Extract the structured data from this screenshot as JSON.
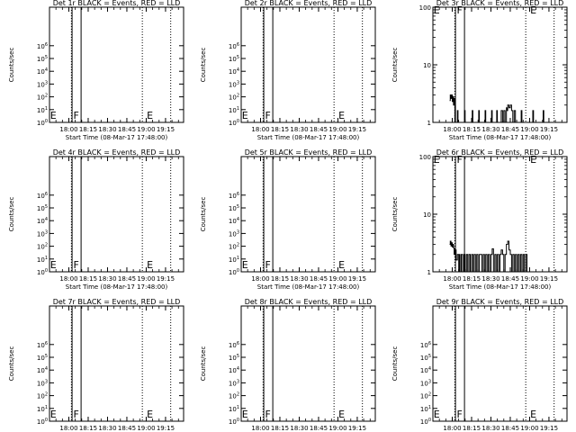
{
  "figure": {
    "x_ticks": [
      "18:00",
      "18:15",
      "18:30",
      "18:45",
      "19:00",
      "19:15"
    ],
    "x_tick_minutes": [
      0,
      15,
      30,
      45,
      60,
      75
    ],
    "x_label": "Start Time (08-Mar-17 17:48:00)",
    "y_label": "Counts/sec",
    "x_range_minutes": [
      -15,
      89
    ],
    "colors": {
      "axes": "#000000",
      "background": "#ffffff",
      "events": "#000000"
    }
  },
  "chart_data": [
    {
      "type": "line",
      "title": "Det 1r BLACK = Events, RED = LLD",
      "xlabel": "Start Time (08-Mar-17 17:48:00)",
      "ylabel": "Counts/sec",
      "yscale": "log",
      "ylim": [
        1,
        100000000
      ],
      "yticks": [
        "10^0",
        "10^1",
        "10^2",
        "10^3",
        "10^4",
        "10^5",
        "10^6"
      ],
      "markers": [
        {
          "text": "E",
          "minute": -14.5
        },
        {
          "text": "F",
          "minute": 3.5
        },
        {
          "text": "E",
          "minute": 60.5
        }
      ],
      "vlines_solid": [
        2.5,
        9.5
      ],
      "vlines_dotted": [
        2,
        57,
        79
      ],
      "series": []
    },
    {
      "type": "line",
      "title": "Det 2r BLACK = Events, RED = LLD",
      "xlabel": "Start Time (08-Mar-17 17:48:00)",
      "ylabel": "Counts/sec",
      "yscale": "log",
      "ylim": [
        1,
        100000000
      ],
      "yticks": [
        "10^0",
        "10^1",
        "10^2",
        "10^3",
        "10^4",
        "10^5",
        "10^6"
      ],
      "markers": [
        {
          "text": "E",
          "minute": -14.5
        },
        {
          "text": "F",
          "minute": 3.5
        },
        {
          "text": "E",
          "minute": 60.5
        }
      ],
      "vlines_solid": [
        2.5,
        9.5
      ],
      "vlines_dotted": [
        2,
        57,
        79
      ],
      "series": []
    },
    {
      "type": "line",
      "title": "Det 3r BLACK = Events, RED = LLD",
      "xlabel": "Start Time (08-Mar-17 17:48:00)",
      "ylabel": "Counts/sec",
      "yscale": "log",
      "ylim": [
        1,
        100
      ],
      "yticks": [
        "1",
        "10",
        "100"
      ],
      "markers": [
        {
          "text": "E",
          "minute": -14.5
        },
        {
          "text": "F",
          "minute": 3.5
        },
        {
          "text": "E",
          "minute": 60.5
        }
      ],
      "vlines_solid": [
        2.5,
        9.5
      ],
      "vlines_dotted": [
        2,
        57,
        79
      ],
      "series": [
        {
          "name": "",
          "step": true,
          "values": [
            [
              -2,
              2.4
            ],
            [
              -1.5,
              3
            ],
            [
              -1,
              2.6
            ],
            [
              -0.5,
              3
            ],
            [
              0,
              2.3
            ],
            [
              0.5,
              2.8
            ],
            [
              1,
              2
            ],
            [
              1.5,
              2.6
            ],
            [
              2,
              1
            ],
            [
              3,
              1
            ],
            [
              4,
              1.6
            ],
            [
              4.5,
              1
            ],
            [
              9,
              1
            ],
            [
              9.5,
              1.6
            ],
            [
              10,
              1
            ],
            [
              15,
              1
            ],
            [
              15.5,
              1.6
            ],
            [
              16,
              1
            ],
            [
              20,
              1
            ],
            [
              20.5,
              1.6
            ],
            [
              21,
              1
            ],
            [
              25,
              1
            ],
            [
              25.5,
              1.6
            ],
            [
              26,
              1
            ],
            [
              30,
              1
            ],
            [
              30.5,
              1.6
            ],
            [
              31,
              1
            ],
            [
              34,
              1
            ],
            [
              34.5,
              1.6
            ],
            [
              35,
              1
            ],
            [
              38,
              1.6
            ],
            [
              39,
              1
            ],
            [
              40,
              1.6
            ],
            [
              41,
              1
            ],
            [
              42,
              1.8
            ],
            [
              42.5,
              1.6
            ],
            [
              43,
              2
            ],
            [
              44,
              1.8
            ],
            [
              45,
              2
            ],
            [
              46,
              1.6
            ],
            [
              47,
              1
            ],
            [
              48,
              1.6
            ],
            [
              49,
              1
            ],
            [
              53,
              1
            ],
            [
              53.5,
              1.6
            ],
            [
              54,
              1
            ],
            [
              62,
              1
            ],
            [
              62.5,
              1.6
            ],
            [
              63,
              1
            ],
            [
              70,
              1
            ],
            [
              70.5,
              1.6
            ],
            [
              71,
              1
            ]
          ]
        }
      ]
    },
    {
      "type": "line",
      "title": "Det 4r BLACK = Events, RED = LLD",
      "xlabel": "Start Time (08-Mar-17 17:48:00)",
      "ylabel": "Counts/sec",
      "yscale": "log",
      "ylim": [
        1,
        100000000
      ],
      "yticks": [
        "10^0",
        "10^1",
        "10^2",
        "10^3",
        "10^4",
        "10^5",
        "10^6"
      ],
      "markers": [
        {
          "text": "E",
          "minute": -14.5
        },
        {
          "text": "F",
          "minute": 3.5
        },
        {
          "text": "E",
          "minute": 60.5
        }
      ],
      "vlines_solid": [
        2.5,
        9.5
      ],
      "vlines_dotted": [
        2,
        57,
        79
      ],
      "series": []
    },
    {
      "type": "line",
      "title": "Det 5r BLACK = Events, RED = LLD",
      "xlabel": "Start Time (08-Mar-17 17:48:00)",
      "ylabel": "Counts/sec",
      "yscale": "log",
      "ylim": [
        1,
        100000000
      ],
      "yticks": [
        "10^0",
        "10^1",
        "10^2",
        "10^3",
        "10^4",
        "10^5",
        "10^6"
      ],
      "markers": [
        {
          "text": "E",
          "minute": -14.5
        },
        {
          "text": "F",
          "minute": 3.5
        },
        {
          "text": "E",
          "minute": 60.5
        }
      ],
      "vlines_solid": [
        2.5,
        9.5
      ],
      "vlines_dotted": [
        2,
        57,
        79
      ],
      "series": []
    },
    {
      "type": "line",
      "title": "Det 6r BLACK = Events, RED = LLD",
      "xlabel": "Start Time (08-Mar-17 17:48:00)",
      "ylabel": "Counts/sec",
      "yscale": "log",
      "ylim": [
        1,
        100
      ],
      "yticks": [
        "1",
        "10",
        "100"
      ],
      "markers": [
        {
          "text": "E",
          "minute": -14.5
        },
        {
          "text": "F",
          "minute": 3.5
        },
        {
          "text": "E",
          "minute": 60.5
        }
      ],
      "vlines_solid": [
        2.5,
        9.5
      ],
      "vlines_dotted": [
        2,
        57,
        79
      ],
      "series": [
        {
          "name": "",
          "step": true,
          "values": [
            [
              -2,
              3
            ],
            [
              -1.5,
              3.4
            ],
            [
              -1,
              2.8
            ],
            [
              -0.5,
              3.2
            ],
            [
              0,
              2.7
            ],
            [
              0.5,
              3
            ],
            [
              1,
              2.6
            ],
            [
              1.5,
              2
            ],
            [
              2,
              2.4
            ],
            [
              3,
              1.6
            ],
            [
              4,
              2
            ],
            [
              5,
              1
            ],
            [
              5.5,
              2
            ],
            [
              6,
              1
            ],
            [
              7,
              2
            ],
            [
              8,
              1
            ],
            [
              9,
              2
            ],
            [
              10,
              1
            ],
            [
              11,
              2
            ],
            [
              12,
              1
            ],
            [
              13,
              2
            ],
            [
              14,
              1
            ],
            [
              15,
              2
            ],
            [
              16,
              1
            ],
            [
              17,
              2
            ],
            [
              18,
              1
            ],
            [
              19,
              2
            ],
            [
              20,
              1
            ],
            [
              21,
              2
            ],
            [
              22,
              2
            ],
            [
              23,
              1
            ],
            [
              24,
              2
            ],
            [
              25,
              1
            ],
            [
              26,
              2
            ],
            [
              27,
              1
            ],
            [
              28,
              2
            ],
            [
              29,
              1
            ],
            [
              30,
              2
            ],
            [
              31,
              2.5
            ],
            [
              32,
              1
            ],
            [
              33,
              2
            ],
            [
              34,
              1
            ],
            [
              35,
              2
            ],
            [
              36,
              1
            ],
            [
              37,
              2
            ],
            [
              38,
              2.4
            ],
            [
              39,
              2
            ],
            [
              40,
              1
            ],
            [
              41,
              2
            ],
            [
              42,
              3
            ],
            [
              43,
              3.4
            ],
            [
              44,
              2.4
            ],
            [
              45,
              2
            ],
            [
              46,
              1
            ],
            [
              47,
              2
            ],
            [
              48,
              1
            ],
            [
              49,
              2
            ],
            [
              50,
              1
            ],
            [
              51,
              2
            ],
            [
              52,
              1
            ],
            [
              53,
              2
            ],
            [
              54,
              1
            ],
            [
              55,
              2
            ],
            [
              56,
              1
            ],
            [
              57,
              2
            ],
            [
              58,
              1
            ]
          ]
        }
      ]
    },
    {
      "type": "line",
      "title": "Det 7r BLACK = Events, RED = LLD",
      "xlabel": "Start Time (08-Mar-17 17:48:00)",
      "ylabel": "Counts/sec",
      "yscale": "log",
      "ylim": [
        1,
        100000000
      ],
      "yticks": [
        "10^0",
        "10^1",
        "10^2",
        "10^3",
        "10^4",
        "10^5",
        "10^6"
      ],
      "markers": [
        {
          "text": "E",
          "minute": -14.5
        },
        {
          "text": "F",
          "minute": 3.5
        },
        {
          "text": "E",
          "minute": 60.5
        }
      ],
      "vlines_solid": [
        2.5,
        9.5
      ],
      "vlines_dotted": [
        2,
        57,
        79
      ],
      "series": []
    },
    {
      "type": "line",
      "title": "Det 8r BLACK = Events, RED = LLD",
      "xlabel": "Start Time (08-Mar-17 17:48:00)",
      "ylabel": "Counts/sec",
      "yscale": "log",
      "ylim": [
        1,
        100000000
      ],
      "yticks": [
        "10^0",
        "10^1",
        "10^2",
        "10^3",
        "10^4",
        "10^5",
        "10^6"
      ],
      "markers": [
        {
          "text": "E",
          "minute": -14.5
        },
        {
          "text": "F",
          "minute": 3.5
        },
        {
          "text": "E",
          "minute": 60.5
        }
      ],
      "vlines_solid": [
        2.5,
        9.5
      ],
      "vlines_dotted": [
        2,
        57,
        79
      ],
      "series": []
    },
    {
      "type": "line",
      "title": "Det 9r BLACK = Events, RED = LLD",
      "xlabel": "Start Time (08-Mar-17 17:48:00)",
      "ylabel": "Counts/sec",
      "yscale": "log",
      "ylim": [
        1,
        100000000
      ],
      "yticks": [
        "10^0",
        "10^1",
        "10^2",
        "10^3",
        "10^4",
        "10^5",
        "10^6"
      ],
      "markers": [
        {
          "text": "E",
          "minute": -14.5
        },
        {
          "text": "F",
          "minute": 3.5
        },
        {
          "text": "E",
          "minute": 60.5
        }
      ],
      "vlines_solid": [
        2.5,
        9.5
      ],
      "vlines_dotted": [
        2,
        57,
        79
      ],
      "series": []
    }
  ]
}
